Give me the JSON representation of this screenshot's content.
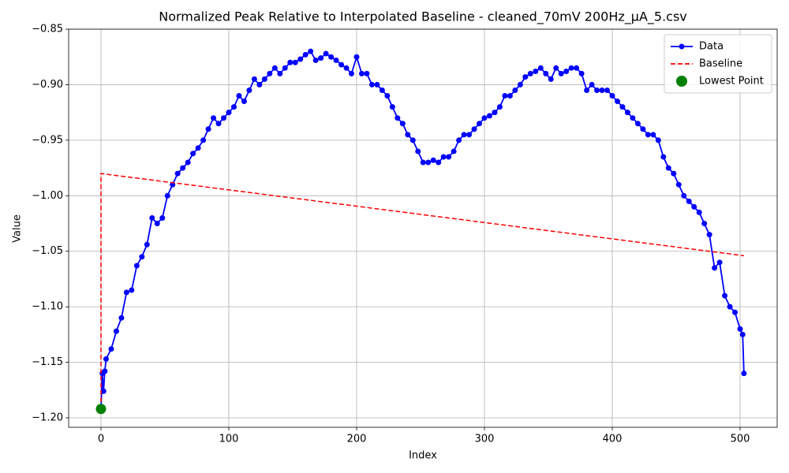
{
  "chart_data": {
    "type": "line",
    "title": "Normalized Peak Relative to Interpolated Baseline - cleaned_70mV 200Hz_µA_5.csv",
    "xlabel": "Index",
    "ylabel": "Value",
    "xlim": [
      -25.3,
      529
    ],
    "ylim": [
      -1.2085,
      -0.85
    ],
    "xticks": [
      0,
      100,
      200,
      300,
      400,
      500
    ],
    "yticks": [
      {
        "value": -0.85,
        "label": "−0.85"
      },
      {
        "value": -0.9,
        "label": "−0.90"
      },
      {
        "value": -0.95,
        "label": "−0.95"
      },
      {
        "value": -1.0,
        "label": "−1.00"
      },
      {
        "value": -1.05,
        "label": "−1.05"
      },
      {
        "value": -1.1,
        "label": "−1.10"
      },
      {
        "value": -1.15,
        "label": "−1.15"
      },
      {
        "value": -1.2,
        "label": "−1.20"
      }
    ],
    "grid": true,
    "legend": "upper right",
    "series": [
      {
        "name": "Data",
        "color": "#0000ff",
        "style": "line-marker",
        "x": [
          0,
          1,
          2,
          3,
          4,
          8,
          12,
          16,
          20,
          24,
          28,
          32,
          36,
          40,
          44,
          48,
          52,
          56,
          60,
          64,
          68,
          72,
          76,
          80,
          84,
          88,
          92,
          96,
          100,
          104,
          108,
          112,
          116,
          120,
          124,
          128,
          132,
          136,
          140,
          144,
          148,
          152,
          156,
          160,
          164,
          168,
          172,
          176,
          180,
          184,
          188,
          192,
          196,
          200,
          204,
          208,
          212,
          216,
          220,
          224,
          228,
          232,
          236,
          240,
          244,
          248,
          252,
          256,
          260,
          264,
          268,
          272,
          276,
          280,
          284,
          288,
          292,
          296,
          300,
          304,
          308,
          312,
          316,
          320,
          324,
          328,
          332,
          336,
          340,
          344,
          348,
          352,
          356,
          360,
          364,
          368,
          372,
          376,
          380,
          384,
          388,
          392,
          396,
          400,
          404,
          408,
          412,
          416,
          420,
          424,
          428,
          432,
          436,
          440,
          444,
          448,
          452,
          456,
          460,
          464,
          468,
          472,
          476,
          480,
          484,
          488,
          492,
          496,
          500,
          502,
          503
        ],
        "values": [
          -1.192,
          -1.16,
          -1.176,
          -1.158,
          -1.147,
          -1.138,
          -1.122,
          -1.11,
          -1.087,
          -1.085,
          -1.063,
          -1.055,
          -1.044,
          -1.02,
          -1.025,
          -1.02,
          -1.0,
          -0.99,
          -0.98,
          -0.975,
          -0.97,
          -0.962,
          -0.957,
          -0.95,
          -0.94,
          -0.93,
          -0.935,
          -0.93,
          -0.925,
          -0.92,
          -0.91,
          -0.915,
          -0.905,
          -0.895,
          -0.9,
          -0.895,
          -0.89,
          -0.885,
          -0.89,
          -0.885,
          -0.88,
          -0.88,
          -0.877,
          -0.873,
          -0.87,
          -0.878,
          -0.876,
          -0.872,
          -0.875,
          -0.878,
          -0.882,
          -0.885,
          -0.89,
          -0.875,
          -0.89,
          -0.89,
          -0.9,
          -0.9,
          -0.905,
          -0.91,
          -0.92,
          -0.93,
          -0.935,
          -0.945,
          -0.95,
          -0.96,
          -0.97,
          -0.97,
          -0.968,
          -0.97,
          -0.965,
          -0.965,
          -0.96,
          -0.95,
          -0.945,
          -0.945,
          -0.94,
          -0.935,
          -0.93,
          -0.928,
          -0.925,
          -0.92,
          -0.91,
          -0.91,
          -0.905,
          -0.9,
          -0.893,
          -0.89,
          -0.888,
          -0.885,
          -0.89,
          -0.895,
          -0.885,
          -0.89,
          -0.888,
          -0.885,
          -0.885,
          -0.89,
          -0.905,
          -0.9,
          -0.905,
          -0.905,
          -0.905,
          -0.91,
          -0.915,
          -0.92,
          -0.925,
          -0.93,
          -0.935,
          -0.94,
          -0.945,
          -0.945,
          -0.95,
          -0.965,
          -0.975,
          -0.98,
          -0.99,
          -1.0,
          -1.005,
          -1.01,
          -1.015,
          -1.025,
          -1.035,
          -1.065,
          -1.06,
          -1.09,
          -1.1,
          -1.105,
          -1.12,
          -1.125,
          -1.16
        ]
      },
      {
        "name": "Baseline",
        "color": "#ff0000",
        "style": "dashed",
        "x": [
          0,
          0,
          503
        ],
        "values": [
          -1.192,
          -0.98,
          -1.054
        ]
      },
      {
        "name": "Lowest Point",
        "color": "#008000",
        "style": "point",
        "x": [
          0
        ],
        "values": [
          -1.192
        ]
      }
    ]
  }
}
